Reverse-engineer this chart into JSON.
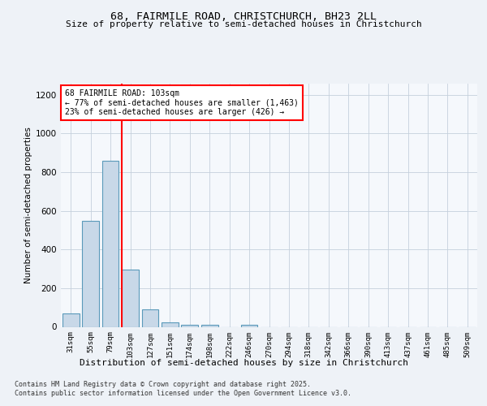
{
  "title_line1": "68, FAIRMILE ROAD, CHRISTCHURCH, BH23 2LL",
  "title_line2": "Size of property relative to semi-detached houses in Christchurch",
  "xlabel": "Distribution of semi-detached houses by size in Christchurch",
  "ylabel": "Number of semi-detached properties",
  "categories": [
    "31sqm",
    "55sqm",
    "79sqm",
    "103sqm",
    "127sqm",
    "151sqm",
    "174sqm",
    "198sqm",
    "222sqm",
    "246sqm",
    "270sqm",
    "294sqm",
    "318sqm",
    "342sqm",
    "366sqm",
    "390sqm",
    "413sqm",
    "437sqm",
    "461sqm",
    "485sqm",
    "509sqm"
  ],
  "values": [
    70,
    550,
    860,
    295,
    90,
    25,
    12,
    10,
    0,
    10,
    0,
    0,
    0,
    0,
    0,
    0,
    0,
    0,
    0,
    0,
    0
  ],
  "bar_color": "#c8d8e8",
  "bar_edgecolor": "#5a9aba",
  "redline_index": 3,
  "ylim": [
    0,
    1260
  ],
  "yticks": [
    0,
    200,
    400,
    600,
    800,
    1000,
    1200
  ],
  "annotation_title": "68 FAIRMILE ROAD: 103sqm",
  "annotation_line1": "← 77% of semi-detached houses are smaller (1,463)",
  "annotation_line2": "23% of semi-detached houses are larger (426) →",
  "footer_line1": "Contains HM Land Registry data © Crown copyright and database right 2025.",
  "footer_line2": "Contains public sector information licensed under the Open Government Licence v3.0.",
  "bg_color": "#eef2f7",
  "plot_bg_color": "#f5f8fc",
  "grid_color": "#c5d0dc"
}
